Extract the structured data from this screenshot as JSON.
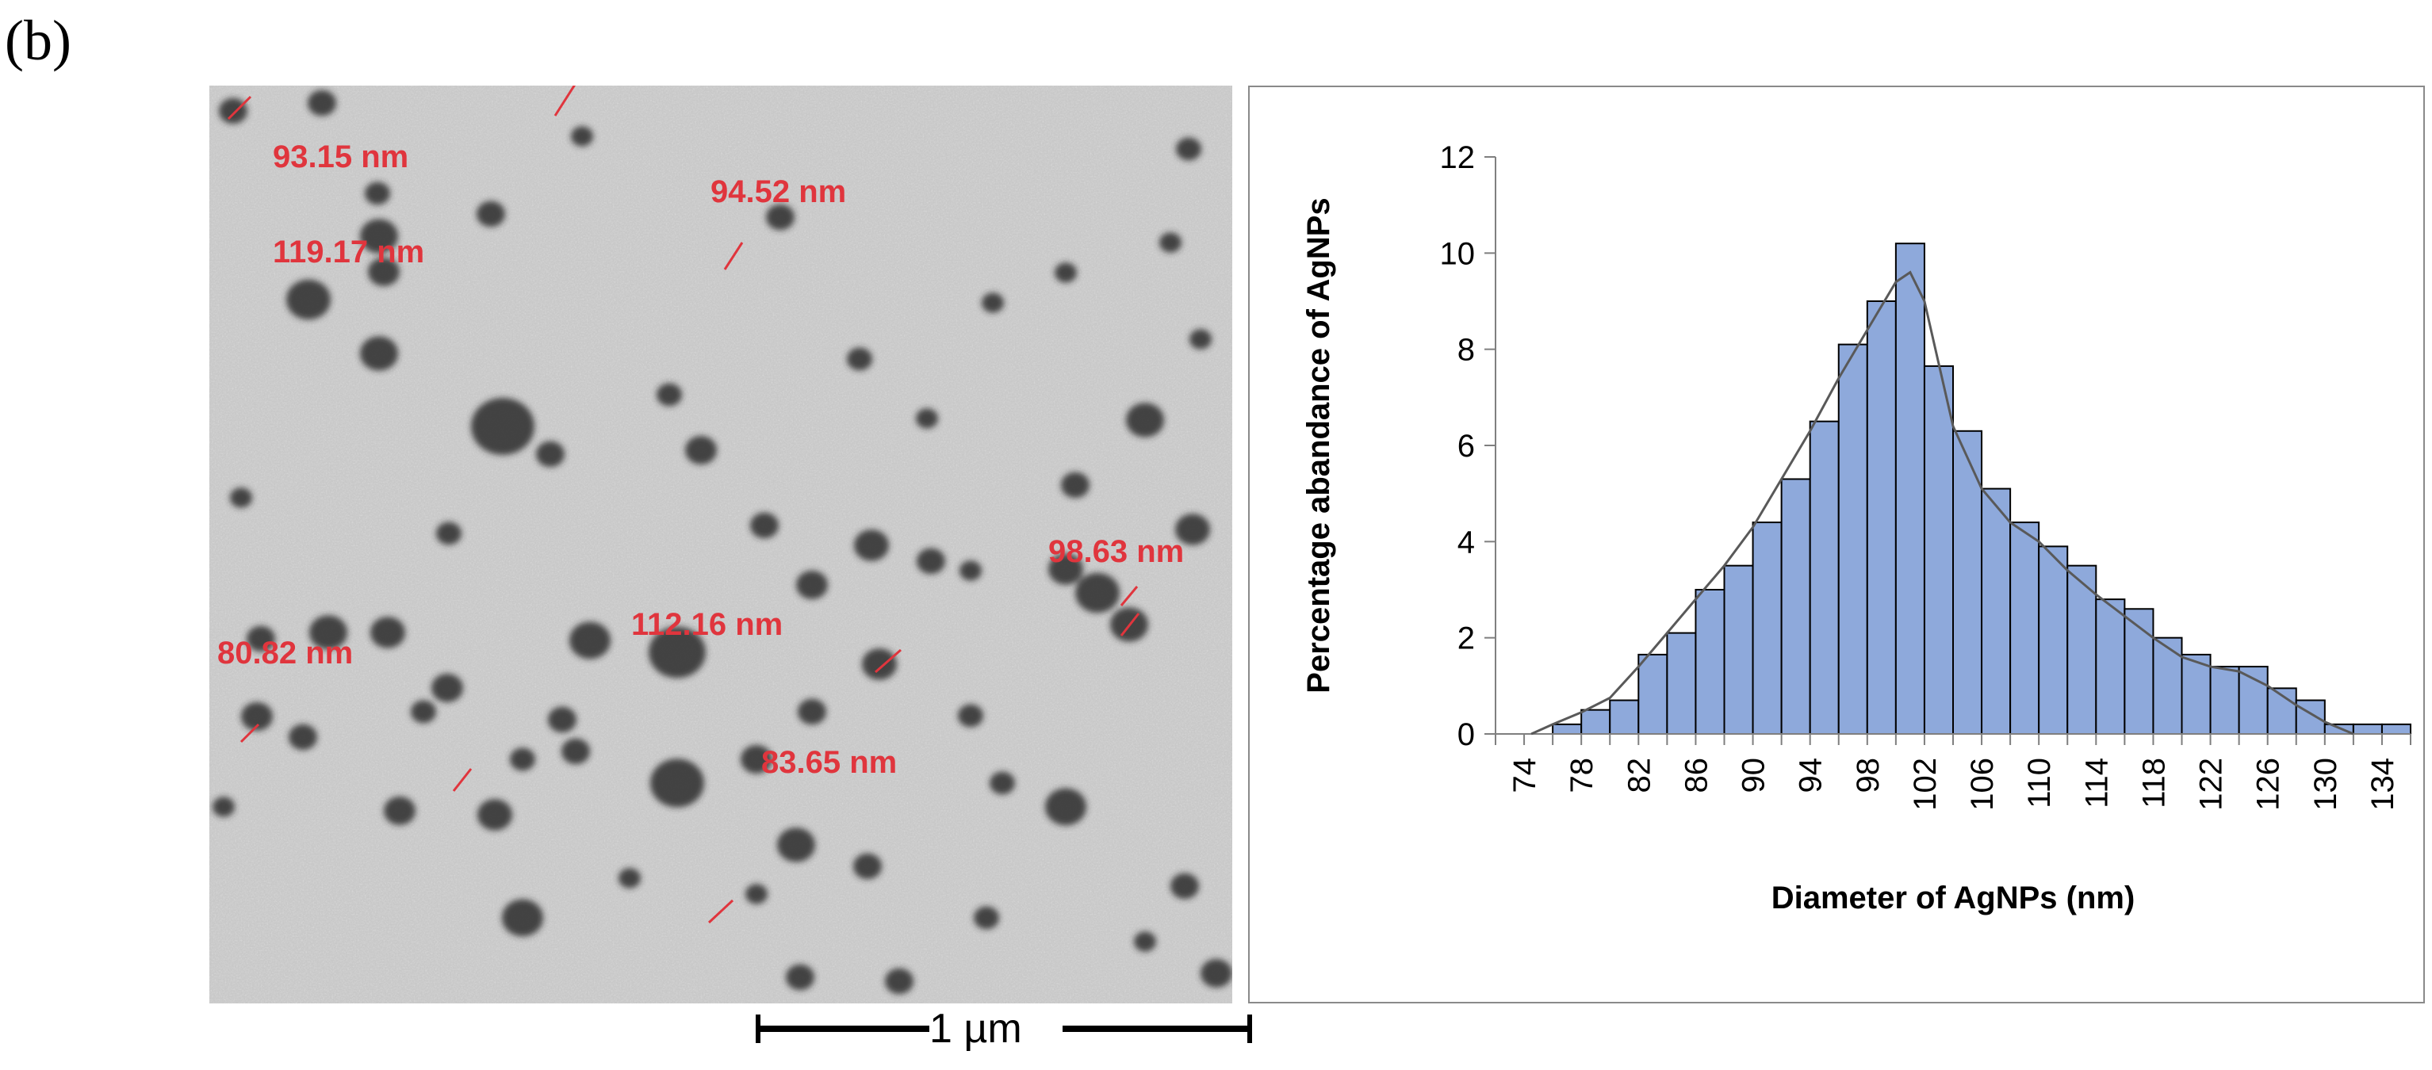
{
  "panel_label": "(b)",
  "tem_image": {
    "measurements": [
      "93.15 nm",
      "94.52 nm",
      "119.17 nm",
      "98.63 nm",
      "80.82 nm",
      "112.16 nm",
      "83.65 nm"
    ],
    "scale_bar_label": "1 µm",
    "label_color": "#e0353d"
  },
  "chart_data": {
    "type": "bar",
    "xlabel": "Diameter of AgNPs (nm)",
    "ylabel": "Percentage abandance of AgNPs",
    "ylim": [
      0,
      12
    ],
    "yticks": [
      "0",
      "2",
      "4",
      "6",
      "8",
      "10",
      "12"
    ],
    "xtick_labels": [
      "74",
      "78",
      "82",
      "86",
      "90",
      "94",
      "98",
      "102",
      "106",
      "110",
      "114",
      "118",
      "122",
      "126",
      "130",
      "134"
    ],
    "bins_start": 74,
    "bin_width": 2,
    "values": [
      0,
      0,
      0.2,
      0.5,
      0.7,
      1.65,
      2.1,
      3.0,
      3.5,
      4.4,
      5.3,
      6.5,
      8.1,
      9.0,
      10.2,
      7.65,
      6.3,
      5.1,
      4.4,
      3.9,
      3.5,
      2.8,
      2.6,
      2.0,
      1.65,
      1.4,
      1.4,
      0.95,
      0.7,
      0.2,
      0.2,
      0.2
    ],
    "fit_curve": {
      "x": [
        76.5,
        78,
        80,
        82,
        84,
        86,
        88,
        90,
        92,
        94,
        96,
        98,
        100,
        102,
        103,
        104,
        106,
        108,
        110,
        112,
        114,
        116,
        118,
        120,
        122,
        124,
        126,
        128,
        130,
        132,
        134
      ],
      "y": [
        0,
        0.2,
        0.45,
        0.75,
        1.4,
        2.1,
        2.8,
        3.5,
        4.3,
        5.3,
        6.3,
        7.4,
        8.4,
        9.4,
        9.6,
        9.0,
        6.4,
        5.1,
        4.4,
        4.0,
        3.4,
        2.9,
        2.45,
        2.0,
        1.6,
        1.4,
        1.3,
        1.0,
        0.6,
        0.25,
        0
      ],
      "color": "#595959"
    },
    "bar_color": "#8ea9db",
    "grid": false
  }
}
